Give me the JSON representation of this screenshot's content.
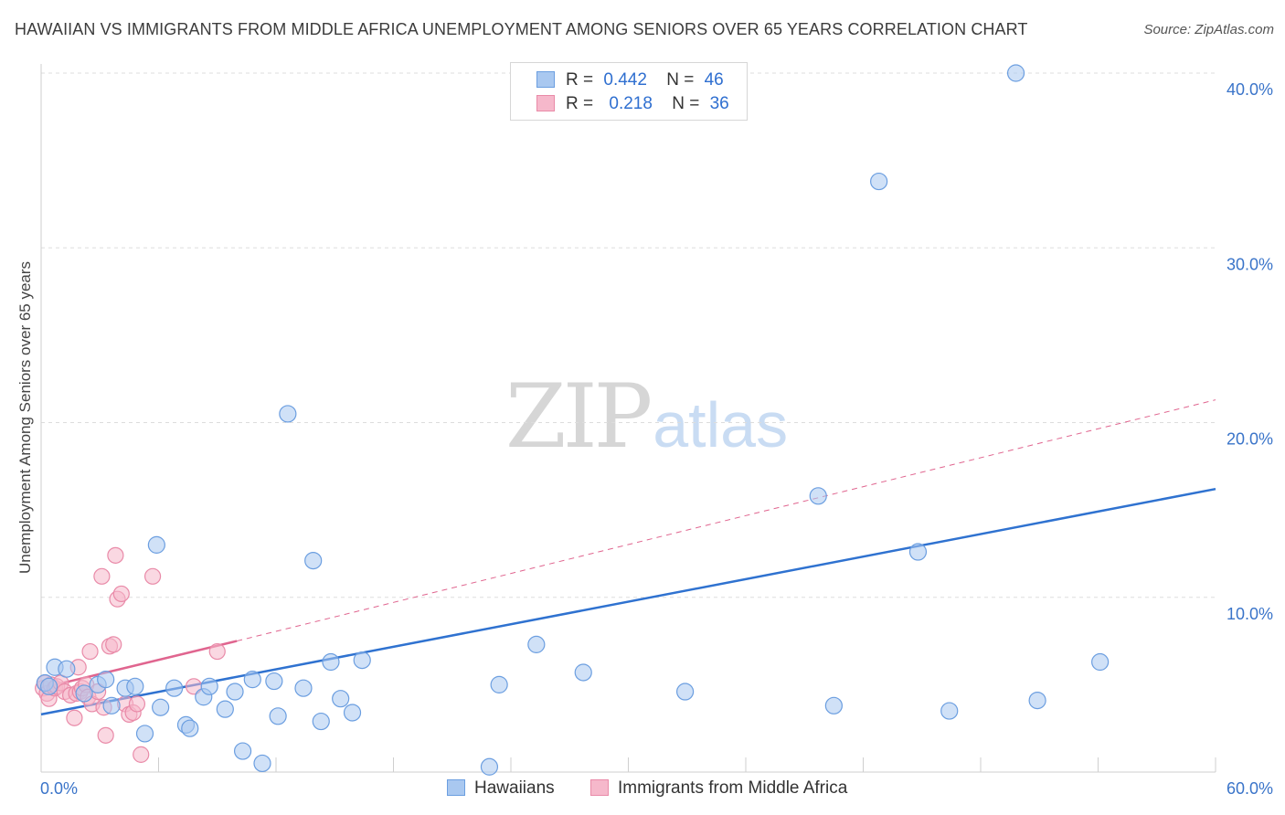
{
  "header": {
    "title": "HAWAIIAN VS IMMIGRANTS FROM MIDDLE AFRICA UNEMPLOYMENT AMONG SENIORS OVER 65 YEARS CORRELATION CHART",
    "source": "Source: ZipAtlas.com"
  },
  "watermark": {
    "zip": "ZIP",
    "atlas": "atlas"
  },
  "legend": {
    "hawaiians": {
      "r_label": "R =",
      "r_value": "0.442",
      "n_label": "N =",
      "n_value": "46"
    },
    "immigrants": {
      "r_label": "R =",
      "r_value": "0.218",
      "n_label": "N =",
      "n_value": "36"
    }
  },
  "bottom_legend": {
    "hawaiians": "Hawaiians",
    "immigrants": "Immigrants from Middle Africa"
  },
  "colors": {
    "blue_fill": "#a9c8f0",
    "blue_stroke": "#6b9ee0",
    "blue_line": "#2f72d0",
    "pink_fill": "#f6b8cb",
    "pink_stroke": "#e98aa8",
    "pink_line": "#e0658f",
    "tick_text": "#3a74c9",
    "grid": "#dddddd"
  },
  "chart_data": {
    "type": "scatter",
    "title": "HAWAIIAN VS IMMIGRANTS FROM MIDDLE AFRICA UNEMPLOYMENT AMONG SENIORS OVER 65 YEARS CORRELATION CHART",
    "xlabel": "",
    "ylabel": "Unemployment Among Seniors over 65 years",
    "xlim": [
      0,
      60
    ],
    "ylim": [
      0,
      41.5
    ],
    "x_tick_labels": [
      {
        "value": 0,
        "label": "0.0%"
      },
      {
        "value": 60,
        "label": "60.0%"
      }
    ],
    "y_tick_labels": [
      {
        "value": 10,
        "label": "10.0%"
      },
      {
        "value": 20,
        "label": "20.0%"
      },
      {
        "value": 30,
        "label": "30.0%"
      },
      {
        "value": 40,
        "label": "40.0%"
      }
    ],
    "x_minor_ticks": [
      6,
      12,
      18,
      24,
      30,
      36,
      42,
      48,
      54,
      60
    ],
    "series": [
      {
        "name": "Hawaiians",
        "points": [
          [
            0.2,
            5.1
          ],
          [
            0.4,
            4.9
          ],
          [
            0.7,
            6.0
          ],
          [
            1.3,
            5.9
          ],
          [
            2.2,
            4.5
          ],
          [
            2.9,
            5.0
          ],
          [
            3.3,
            5.3
          ],
          [
            3.6,
            3.8
          ],
          [
            4.3,
            4.8
          ],
          [
            4.8,
            4.9
          ],
          [
            5.3,
            2.2
          ],
          [
            5.9,
            13.0
          ],
          [
            6.1,
            3.7
          ],
          [
            6.8,
            4.8
          ],
          [
            7.4,
            2.7
          ],
          [
            7.6,
            2.5
          ],
          [
            8.3,
            4.3
          ],
          [
            8.6,
            4.9
          ],
          [
            9.4,
            3.6
          ],
          [
            9.9,
            4.6
          ],
          [
            10.3,
            1.2
          ],
          [
            10.8,
            5.3
          ],
          [
            11.3,
            0.5
          ],
          [
            11.9,
            5.2
          ],
          [
            12.1,
            3.2
          ],
          [
            12.6,
            20.5
          ],
          [
            13.4,
            4.8
          ],
          [
            13.9,
            12.1
          ],
          [
            14.3,
            2.9
          ],
          [
            14.8,
            6.3
          ],
          [
            15.3,
            4.2
          ],
          [
            15.9,
            3.4
          ],
          [
            16.4,
            6.4
          ],
          [
            22.9,
            0.3
          ],
          [
            23.4,
            5.0
          ],
          [
            25.3,
            7.3
          ],
          [
            27.7,
            5.7
          ],
          [
            32.9,
            4.6
          ],
          [
            39.7,
            15.8
          ],
          [
            40.5,
            3.8
          ],
          [
            42.8,
            33.8
          ],
          [
            44.8,
            12.6
          ],
          [
            46.4,
            3.5
          ],
          [
            49.8,
            40.0
          ],
          [
            50.9,
            4.1
          ],
          [
            54.1,
            6.3
          ]
        ]
      },
      {
        "name": "Immigrants from Middle Africa",
        "points": [
          [
            0.1,
            4.8
          ],
          [
            0.2,
            5.1
          ],
          [
            0.3,
            4.5
          ],
          [
            0.4,
            4.2
          ],
          [
            0.5,
            5.0
          ],
          [
            0.7,
            4.8
          ],
          [
            0.8,
            4.9
          ],
          [
            1.0,
            5.1
          ],
          [
            1.2,
            4.6
          ],
          [
            1.5,
            4.4
          ],
          [
            1.7,
            3.1
          ],
          [
            1.8,
            4.5
          ],
          [
            1.9,
            6.0
          ],
          [
            2.0,
            4.6
          ],
          [
            2.1,
            4.8
          ],
          [
            2.3,
            5.0
          ],
          [
            2.4,
            4.3
          ],
          [
            2.5,
            6.9
          ],
          [
            2.6,
            3.9
          ],
          [
            2.9,
            4.6
          ],
          [
            3.1,
            11.2
          ],
          [
            3.2,
            3.7
          ],
          [
            3.3,
            2.1
          ],
          [
            3.5,
            7.2
          ],
          [
            3.7,
            7.3
          ],
          [
            3.8,
            12.4
          ],
          [
            3.9,
            9.9
          ],
          [
            4.1,
            10.2
          ],
          [
            4.3,
            3.9
          ],
          [
            4.5,
            3.3
          ],
          [
            4.7,
            3.4
          ],
          [
            4.9,
            3.9
          ],
          [
            5.1,
            1.0
          ],
          [
            5.7,
            11.2
          ],
          [
            7.8,
            4.9
          ],
          [
            9.0,
            6.9
          ]
        ]
      }
    ],
    "trend_lines": [
      {
        "name": "Hawaiians",
        "style": "solid",
        "from": [
          0,
          3.3
        ],
        "to": [
          60,
          16.2
        ]
      },
      {
        "name": "Immigrants from Middle Africa",
        "style": "solid",
        "from": [
          0,
          4.8
        ],
        "to": [
          10,
          7.5
        ]
      },
      {
        "name": "Immigrants from Middle Africa (extended)",
        "style": "dashed",
        "from": [
          10,
          7.5
        ],
        "to": [
          60,
          21.3
        ]
      }
    ],
    "legend_position": "top-center",
    "grid": "horizontal dashed"
  }
}
